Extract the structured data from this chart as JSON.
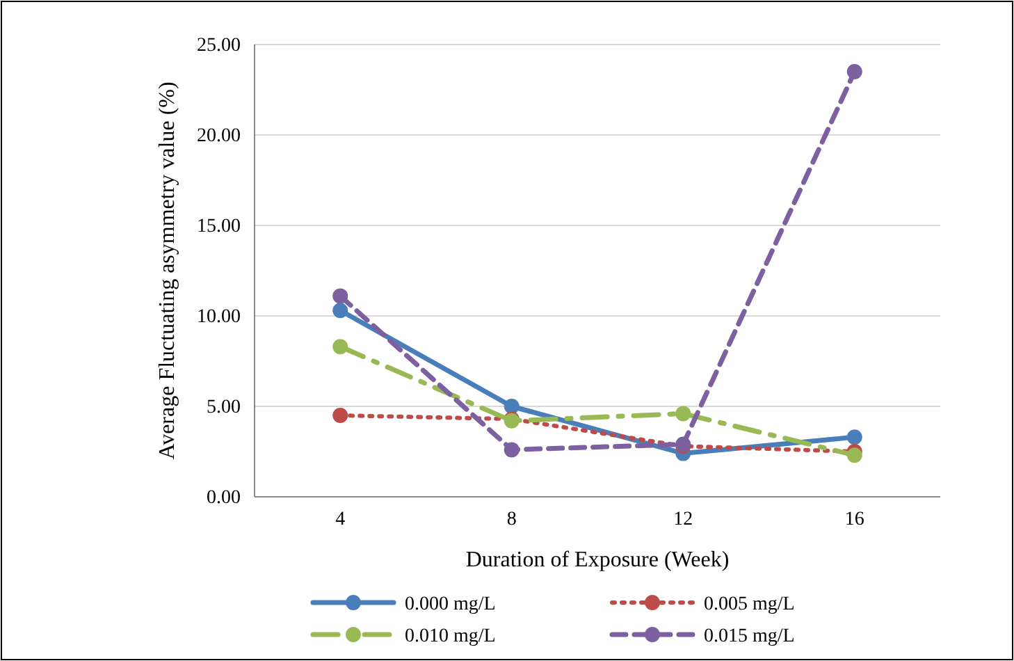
{
  "chart_data": {
    "type": "line",
    "xlabel": "Duration of Exposure (Week)",
    "ylabel": "Average Fluctuating asymmetry value (%)",
    "categories": [
      "4",
      "8",
      "12",
      "16"
    ],
    "series": [
      {
        "name": "0.000 mg/L",
        "color": "#4a7ebb",
        "values": [
          10.3,
          5.0,
          2.4,
          3.3
        ],
        "line_style": "solid"
      },
      {
        "name": "0.005 mg/L",
        "color": "#be4b48",
        "values": [
          4.5,
          4.3,
          2.8,
          2.5
        ],
        "line_style": "dotted"
      },
      {
        "name": "0.010 mg/L",
        "color": "#98b954",
        "values": [
          8.3,
          4.2,
          4.6,
          2.3
        ],
        "line_style": "dashdot"
      },
      {
        "name": "0.015 mg/L",
        "color": "#7d60a0",
        "values": [
          11.1,
          2.6,
          2.9,
          23.5
        ],
        "line_style": "dashed"
      }
    ],
    "ylim": [
      0,
      25
    ],
    "yticks": [
      {
        "value": 0,
        "label": "0.00"
      },
      {
        "value": 5,
        "label": "5.00"
      },
      {
        "value": 10,
        "label": "10.00"
      },
      {
        "value": 15,
        "label": "15.00"
      },
      {
        "value": 20,
        "label": "20.00"
      },
      {
        "value": 25,
        "label": "25.00"
      }
    ],
    "grid": "y",
    "legend": "bottom",
    "marker": "circle"
  }
}
